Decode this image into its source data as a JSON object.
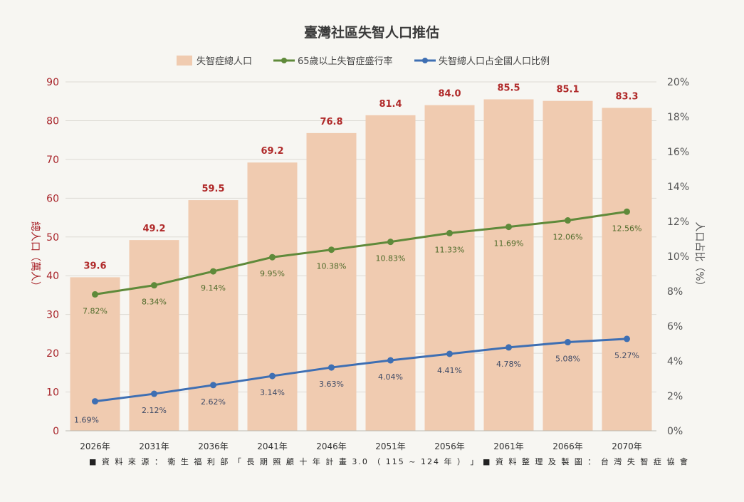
{
  "chart_data": {
    "type": "bar",
    "title": "臺灣社區失智人口推估",
    "categories": [
      "2026年",
      "2031年",
      "2036年",
      "2041年",
      "2046年",
      "2051年",
      "2056年",
      "2061年",
      "2066年",
      "2070年"
    ],
    "series": [
      {
        "name": "失智症總人口",
        "type": "bar",
        "axis": "left",
        "values": [
          39.6,
          49.2,
          59.5,
          69.2,
          76.8,
          81.4,
          84.0,
          85.5,
          85.1,
          83.3
        ],
        "labels": [
          "39.6",
          "49.2",
          "59.5",
          "69.2",
          "76.8",
          "81.4",
          "84.0",
          "85.5",
          "85.1",
          "83.3"
        ],
        "color": "#f0cbb0"
      },
      {
        "name": "65歲以上失智症盛行率",
        "type": "line",
        "axis": "right",
        "values": [
          7.82,
          8.34,
          9.14,
          9.95,
          10.38,
          10.83,
          11.33,
          11.69,
          12.06,
          12.56
        ],
        "labels": [
          "7.82%",
          "8.34%",
          "9.14%",
          "9.95%",
          "10.38%",
          "10.83%",
          "11.33%",
          "11.69%",
          "12.06%",
          "12.56%"
        ],
        "color": "#5f8a3a"
      },
      {
        "name": "失智總人口占全國人口比例",
        "type": "line",
        "axis": "right",
        "values": [
          1.69,
          2.12,
          2.62,
          3.14,
          3.63,
          4.04,
          4.41,
          4.78,
          5.08,
          5.27
        ],
        "labels": [
          "1.69%",
          "2.12%",
          "2.62%",
          "3.14%",
          "3.63%",
          "4.04%",
          "4.41%",
          "4.78%",
          "5.08%",
          "5.27%"
        ],
        "color": "#3e6fb3"
      }
    ],
    "y_left": {
      "label": "總人口（萬人）",
      "range": [
        0,
        90
      ],
      "ticks": [
        "0",
        "10",
        "20",
        "30",
        "40",
        "50",
        "60",
        "70",
        "80",
        "90"
      ]
    },
    "y_right": {
      "label": "人口占比（%）",
      "range": [
        0,
        20
      ],
      "ticks": [
        "0%",
        "2%",
        "4%",
        "6%",
        "8%",
        "10%",
        "12%",
        "14%",
        "16%",
        "18%",
        "20%"
      ]
    },
    "grid": true,
    "legend": "top-center",
    "colors": {
      "left_axis": "#a8242a",
      "bar_label": "#b02a2a"
    }
  },
  "footer": {
    "source": "■ 資 料 來 源 ： 衛 生 福 利 部 「 長 期 照 顧 十 年 計 畫 3.0 （ 115 ~ 124 年 ） 」",
    "credit": "■ 資 料 整 理 及 製 圖 ： 台 灣 失 智 症 協 會"
  }
}
